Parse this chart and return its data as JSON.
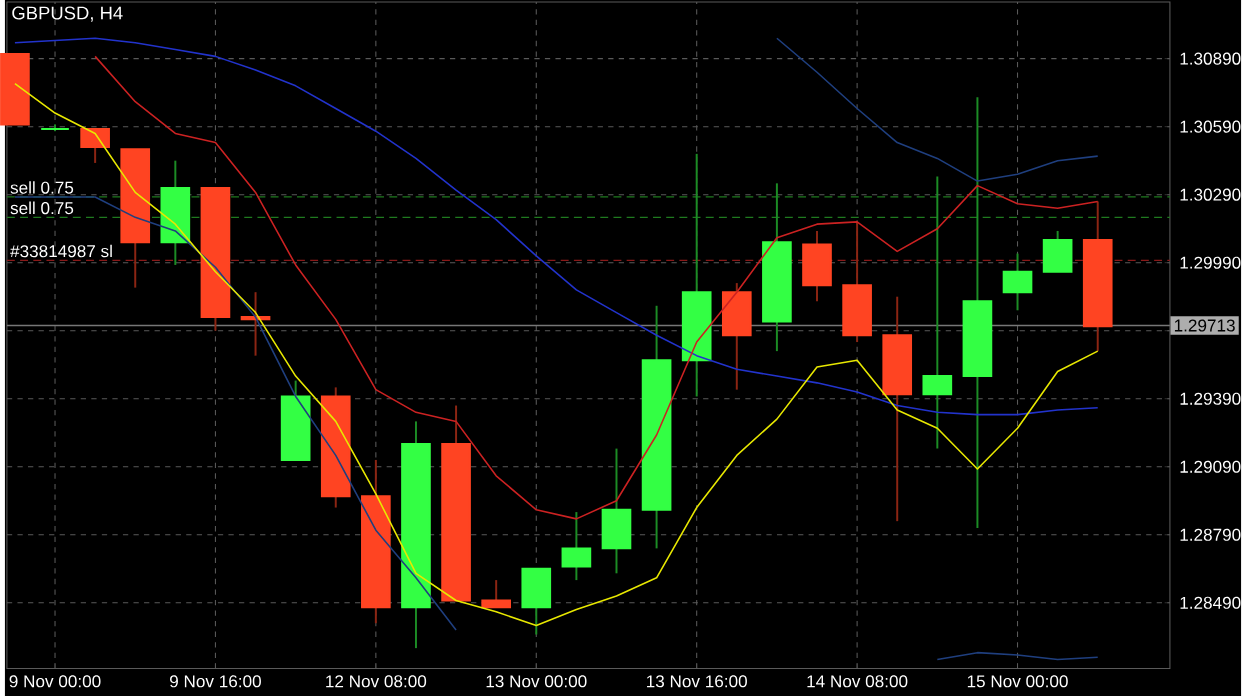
{
  "chart_data": {
    "type": "candlestick",
    "title": "GBPUSD, H4",
    "categories": [
      null,
      "9 Nov 00:00",
      null,
      null,
      null,
      "9 Nov 16:00",
      null,
      null,
      null,
      "12 Nov 08:00",
      null,
      null,
      null,
      "13 Nov 00:00",
      null,
      null,
      null,
      "13 Nov 16:00",
      null,
      null,
      null,
      "14 Nov 08:00",
      null,
      null,
      null,
      "15 Nov 00:00",
      null,
      null
    ],
    "ohlc": [
      [
        1.3091,
        1.3091,
        1.306,
        1.306
      ],
      [
        1.3058,
        1.306,
        1.3057,
        1.3058
      ],
      [
        1.3058,
        1.3058,
        1.3043,
        1.305
      ],
      [
        1.3049,
        1.3049,
        1.2988,
        1.3008
      ],
      [
        1.3008,
        1.3044,
        1.2998,
        1.3032
      ],
      [
        1.3032,
        1.3032,
        1.2969,
        1.2975
      ],
      [
        1.2975,
        1.2986,
        1.2958,
        1.2974
      ],
      [
        1.2912,
        1.2947,
        1.2912,
        1.294
      ],
      [
        1.294,
        1.2944,
        1.2891,
        1.2896
      ],
      [
        1.2896,
        1.2912,
        1.284,
        1.2847
      ],
      [
        1.2847,
        1.2929,
        1.2829,
        1.2919
      ],
      [
        1.2919,
        1.2936,
        1.285,
        1.285
      ],
      [
        1.285,
        1.2859,
        1.2847,
        1.2847
      ],
      [
        1.2847,
        1.2864,
        1.2835,
        1.2864
      ],
      [
        1.2865,
        1.2889,
        1.2859,
        1.2873
      ],
      [
        1.2873,
        1.2917,
        1.2862,
        1.289
      ],
      [
        1.289,
        1.298,
        1.2873,
        1.2956
      ],
      [
        1.2956,
        1.3047,
        1.294,
        1.2986
      ],
      [
        1.2986,
        1.299,
        1.2943,
        1.2967
      ],
      [
        1.2973,
        1.3034,
        1.296,
        1.3008
      ],
      [
        1.3007,
        1.3013,
        1.2982,
        1.2989
      ],
      [
        1.2989,
        1.3017,
        1.2964,
        1.2967
      ],
      [
        1.2967,
        1.2984,
        1.2885,
        1.2941
      ],
      [
        1.2941,
        1.3037,
        1.2917,
        1.2949
      ],
      [
        1.2949,
        1.3072,
        1.2882,
        1.2982
      ],
      [
        1.2986,
        1.3003,
        1.2978,
        1.2995
      ],
      [
        1.2995,
        1.3013,
        1.2995,
        1.3009
      ],
      [
        1.3009,
        1.3026,
        1.296,
        1.2971
      ]
    ],
    "colors": [
      "#ff4422",
      "#33ff44",
      "#ff4422",
      "#ff4422",
      "#33ff44",
      "#ff4422",
      "#ff4422",
      "#33ff44",
      "#ff4422",
      "#ff4422",
      "#33ff44",
      "#ff4422",
      "#ff4422",
      "#33ff44",
      "#33ff44",
      "#33ff44",
      "#33ff44",
      "#33ff44",
      "#ff4422",
      "#33ff44",
      "#ff4422",
      "#ff4422",
      "#ff4422",
      "#33ff44",
      "#33ff44",
      "#33ff44",
      "#33ff44",
      "#ff4422"
    ],
    "series": [
      {
        "type": "line",
        "color": "#2233cc",
        "values": [
          1.3096,
          1.3097,
          1.3098,
          1.3096,
          1.3093,
          1.309,
          1.3084,
          1.3077,
          1.3067,
          1.3057,
          1.3045,
          1.3031,
          1.3018,
          1.3002,
          1.2987,
          1.2977,
          1.2967,
          1.2958,
          1.2952,
          1.2949,
          1.2946,
          1.2942,
          1.2936,
          1.2933,
          1.2932,
          1.2932,
          1.2934,
          1.2935
        ]
      },
      {
        "type": "line",
        "color": "#1f3f7f",
        "values": [
          null,
          null,
          null,
          null,
          null,
          null,
          null,
          null,
          null,
          null,
          null,
          null,
          null,
          null,
          null,
          null,
          null,
          null,
          null,
          1.3098,
          1.3083,
          1.3067,
          1.3052,
          1.3045,
          1.3035,
          1.3038,
          1.3044,
          1.3046
        ]
      },
      {
        "type": "line",
        "color": "#1f3f7f",
        "values": [
          1.3028,
          1.3028,
          1.3028,
          1.3019,
          1.3013,
          1.2997,
          1.2975,
          1.294,
          1.2914,
          1.2881,
          1.286,
          1.2837,
          null,
          null,
          null,
          null,
          null,
          null,
          null,
          null,
          null,
          null,
          null,
          1.2824,
          1.2827,
          1.2826,
          1.2824,
          1.2825
        ]
      },
      {
        "type": "line",
        "color": "#cc2222",
        "values": [
          null,
          null,
          1.309,
          1.307,
          1.3056,
          1.3052,
          1.303,
          1.2998,
          1.2974,
          1.2943,
          1.2933,
          1.2929,
          1.2905,
          1.289,
          1.2886,
          1.2894,
          1.2923,
          1.2964,
          1.2986,
          1.301,
          1.3016,
          1.3017,
          1.3004,
          1.3014,
          1.3033,
          1.3025,
          1.3023,
          1.3026
        ]
      },
      {
        "type": "line",
        "color": "#e8e800",
        "values": [
          1.3078,
          1.3065,
          1.3056,
          1.303,
          1.3016,
          1.2995,
          1.2977,
          1.2949,
          1.2929,
          1.2897,
          1.2862,
          1.285,
          1.2845,
          1.2839,
          1.2846,
          1.2852,
          1.286,
          1.2891,
          1.2914,
          1.293,
          1.2953,
          1.2956,
          1.2934,
          1.2926,
          1.2908,
          1.2926,
          1.2951,
          1.296
        ]
      }
    ],
    "ylim": [
      1.282,
      1.3114
    ],
    "yticks": [
      {
        "value": 1.2849,
        "label": "1.28490"
      },
      {
        "value": 1.2879,
        "label": "1.28790"
      },
      {
        "value": 1.2909,
        "label": "1.29090"
      },
      {
        "value": 1.2939,
        "label": "1.29390"
      },
      {
        "value": 1.2969,
        "label": null
      },
      {
        "value": 1.2999,
        "label": "1.29990"
      },
      {
        "value": 1.3029,
        "label": "1.30290"
      },
      {
        "value": 1.3059,
        "label": "1.30590"
      },
      {
        "value": 1.3089,
        "label": "1.30890"
      }
    ],
    "ref_lines": [
      {
        "axis": "y",
        "value": 1.3028,
        "label": "sell 0.75",
        "color": "#1f7a1f",
        "line_style": "dashed"
      },
      {
        "axis": "y",
        "value": 1.3019,
        "label": "sell 0.75",
        "color": "#1f7a1f",
        "line_style": "dashed"
      },
      {
        "axis": "y",
        "value": 1.3,
        "label": "#33814987 sl",
        "color": "#8a1a1a",
        "line_style": "dashed"
      },
      {
        "axis": "y",
        "value": 1.29713,
        "label": "1.29713",
        "color": "#777777",
        "line_style": "solid"
      }
    ],
    "grid": true
  }
}
